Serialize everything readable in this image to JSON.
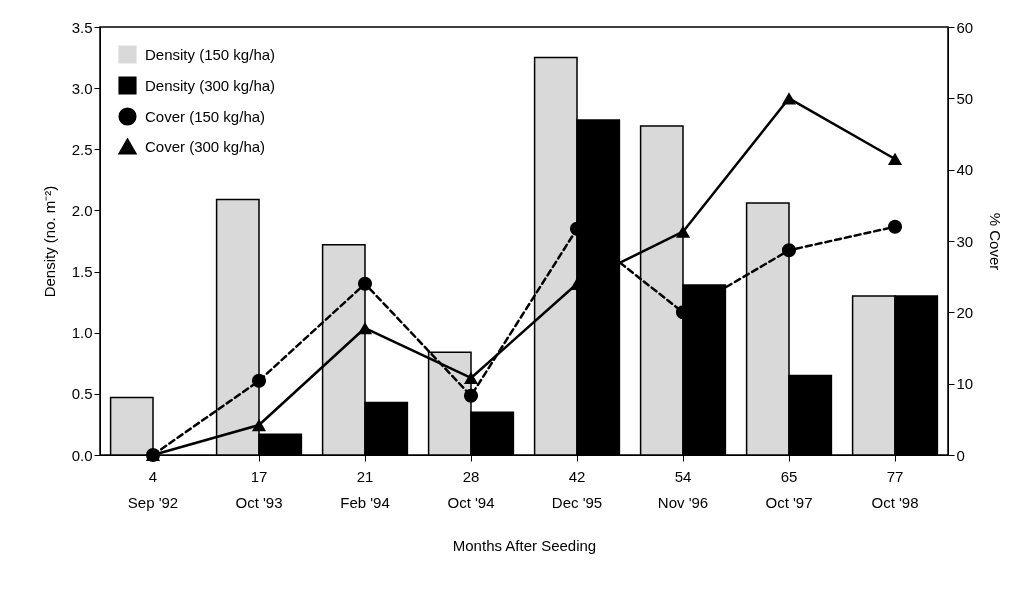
{
  "chart_data": {
    "type": "bar",
    "xlabel": "Months After Seeding",
    "ylabel": "Density (no. m⁻²)",
    "y2label": "% Cover",
    "categories": [
      "4\nSep '92",
      "17\nOct '93",
      "21\nFeb '94",
      "28\nOct '94",
      "42\nDec '95",
      "54\nNov '96",
      "65\nOct '97",
      "77\nOct '98"
    ],
    "ylim": [
      0,
      3.5
    ],
    "yticks": [
      {
        "value": 0,
        "label": "0.0"
      },
      0.5,
      {
        "value": 1,
        "label": "1.0"
      },
      1.5,
      {
        "value": 2,
        "label": "2.0"
      },
      2.5,
      {
        "value": 3,
        "label": "3.0"
      },
      3.5
    ],
    "y2lim": [
      0,
      60
    ],
    "y2ticks": [
      0,
      10,
      20,
      30,
      40,
      50,
      60
    ],
    "grid": false,
    "legend": "top left",
    "series": [
      {
        "name": "Density (150 kg/ha)",
        "color": "#d9d9d9",
        "values": [
          0.47,
          2.09,
          1.72,
          0.84,
          3.25,
          2.69,
          2.06,
          1.3
        ]
      },
      {
        "name": "Density (300 kg/ha)",
        "color": "#000000",
        "values": [
          null,
          0.17,
          0.43,
          0.35,
          2.74,
          1.39,
          0.65,
          1.3
        ]
      },
      {
        "name": "Cover (150 kg/ha)",
        "type": "line",
        "axis": "y2",
        "color": "#000000",
        "marker": "circle",
        "line_style": "dashed",
        "values": [
          0,
          10.4,
          24,
          8.3,
          31.7,
          20,
          28.7,
          32
        ]
      },
      {
        "name": "Cover (300 kg/ha)",
        "type": "line",
        "axis": "y2",
        "color": "#000000",
        "marker": "triangle",
        "line_style": "solid",
        "values": [
          0,
          4.2,
          17.8,
          10.8,
          24,
          31.3,
          50,
          41.5
        ]
      }
    ]
  }
}
